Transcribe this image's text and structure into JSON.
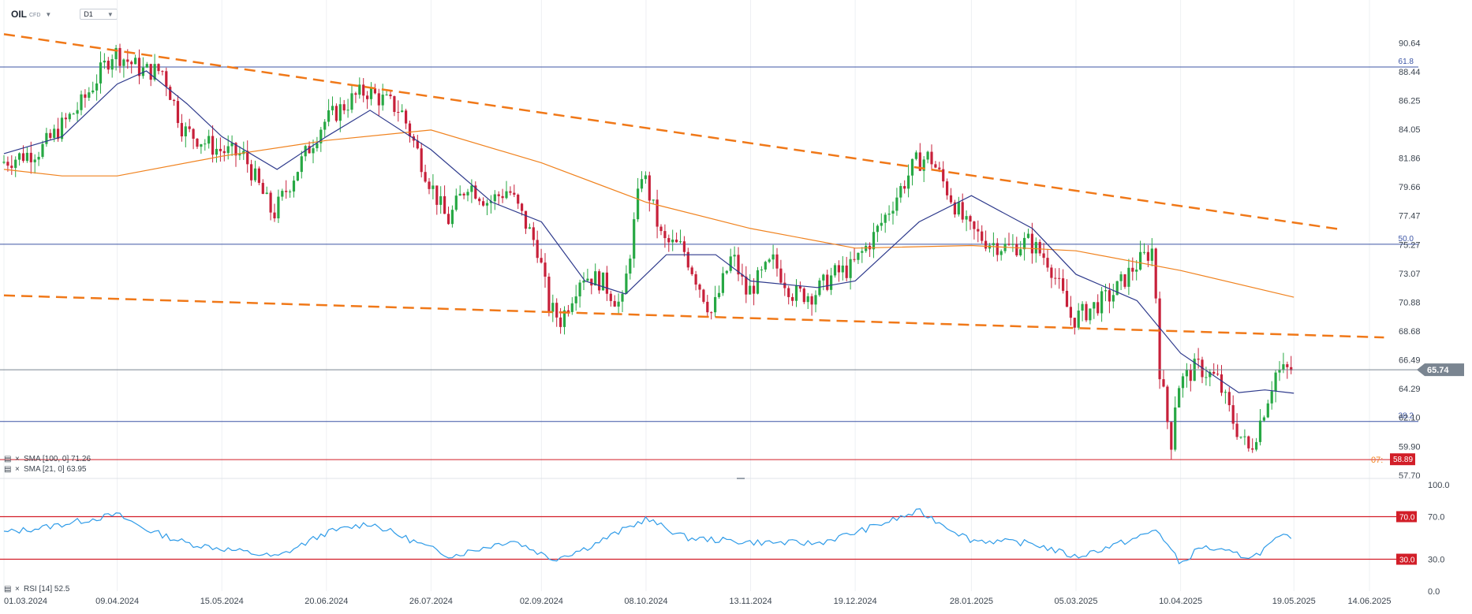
{
  "header": {
    "symbol": "OIL",
    "instrument_type": "CFD",
    "timeframe": "D1",
    "dropdown_icon": "caret-down-icon"
  },
  "colors": {
    "up_candle": "#27a844",
    "down_candle": "#c7203a",
    "sma21": "#2e3a8c",
    "sma100": "#f0821e",
    "trendline": "#f07818",
    "fib_line": "#3c55a5",
    "rsi_line": "#2e9be8",
    "rsi_level": "#d21e28",
    "current_price": "#7a8591",
    "support": "#d21e28"
  },
  "indicators": {
    "sma100_label": "SMA [100, 0] 71.26",
    "sma21_label": "SMA [21, 0] 63.95",
    "rsi_label": "RSI [14] 52.5",
    "rsi_level_70": "70.0",
    "rsi_level_30": "30.0",
    "rsi_axis_100": "100.0",
    "rsi_axis_70": "70.0",
    "rsi_axis_30": "30.0",
    "rsi_axis_0": "0.0"
  },
  "chart_data": {
    "type": "candlestick",
    "timeframe": "D1",
    "price_axis_ticks": [
      "90.64",
      "88.44",
      "86.25",
      "84.05",
      "81.86",
      "79.66",
      "77.47",
      "75.27",
      "73.07",
      "70.88",
      "68.68",
      "66.49",
      "64.29",
      "62.10",
      "59.90",
      "57.70"
    ],
    "price_range": [
      57.7,
      91.8
    ],
    "date_ticks": [
      "01.03.2024",
      "09.04.2024",
      "15.05.2024",
      "20.06.2024",
      "26.07.2024",
      "02.09.2024",
      "08.10.2024",
      "13.11.2024",
      "19.12.2024",
      "28.01.2025",
      "05.03.2025",
      "10.04.2025",
      "19.05.2025",
      "14.06.2025"
    ],
    "current_price": "65.74",
    "support_price": "58.89",
    "support_label_partial": "07:",
    "fibonacci_levels": [
      {
        "label": "61.8",
        "price": 88.8
      },
      {
        "label": "50.0",
        "price": 75.3
      },
      {
        "label": "38.2",
        "price": 61.8
      }
    ],
    "trendlines": [
      {
        "name": "upper",
        "from": {
          "date": "01.03.2024",
          "price": 91.3
        },
        "to": {
          "date": "05.06.2025",
          "price": 76.4
        }
      },
      {
        "name": "lower",
        "from": {
          "date": "01.03.2024",
          "price": 71.4
        },
        "to": {
          "date": "19.06.2025",
          "price": 68.2
        }
      }
    ],
    "price_path": [
      [
        "01.03.2024",
        81.5
      ],
      [
        "15.03.2024",
        82.5
      ],
      [
        "29.03.2024",
        86.0
      ],
      [
        "09.04.2024",
        90.0
      ],
      [
        "19.04.2024",
        88.5
      ],
      [
        "26.04.2024",
        88.5
      ],
      [
        "03.05.2024",
        84.0
      ],
      [
        "15.05.2024",
        82.5
      ],
      [
        "24.05.2024",
        82.0
      ],
      [
        "03.06.2024",
        77.5
      ],
      [
        "10.06.2024",
        80.5
      ],
      [
        "20.06.2024",
        84.5
      ],
      [
        "01.07.2024",
        86.5
      ],
      [
        "05.07.2024",
        87.0
      ],
      [
        "17.07.2024",
        85.5
      ],
      [
        "26.07.2024",
        80.5
      ],
      [
        "02.08.2024",
        77.0
      ],
      [
        "09.08.2024",
        80.0
      ],
      [
        "16.08.2024",
        78.5
      ],
      [
        "23.08.2024",
        79.5
      ],
      [
        "02.09.2024",
        75.0
      ],
      [
        "06.09.2024",
        70.5
      ],
      [
        "10.09.2024",
        69.5
      ],
      [
        "17.09.2024",
        73.0
      ],
      [
        "24.09.2024",
        72.5
      ],
      [
        "01.10.2024",
        70.5
      ],
      [
        "08.10.2024",
        81.0
      ],
      [
        "15.10.2024",
        75.5
      ],
      [
        "22.10.2024",
        75.0
      ],
      [
        "01.11.2024",
        70.0
      ],
      [
        "08.11.2024",
        74.5
      ],
      [
        "13.11.2024",
        71.5
      ],
      [
        "22.11.2024",
        74.0
      ],
      [
        "29.11.2024",
        71.5
      ],
      [
        "06.12.2024",
        71.5
      ],
      [
        "13.12.2024",
        73.0
      ],
      [
        "19.12.2024",
        73.5
      ],
      [
        "27.12.2024",
        76.0
      ],
      [
        "10.01.2025",
        81.5
      ],
      [
        "15.01.2025",
        82.0
      ],
      [
        "22.01.2025",
        79.0
      ],
      [
        "28.01.2025",
        76.5
      ],
      [
        "04.02.2025",
        75.5
      ],
      [
        "11.02.2025",
        75.0
      ],
      [
        "18.02.2025",
        75.5
      ],
      [
        "25.02.2025",
        74.0
      ],
      [
        "05.03.2025",
        69.5
      ],
      [
        "12.03.2025",
        70.5
      ],
      [
        "19.03.2025",
        71.5
      ],
      [
        "26.03.2025",
        73.5
      ],
      [
        "02.04.2025",
        75.0
      ],
      [
        "04.04.2025",
        66.0
      ],
      [
        "08.04.2025",
        60.0
      ],
      [
        "10.04.2025",
        64.5
      ],
      [
        "17.04.2025",
        66.0
      ],
      [
        "24.04.2025",
        65.0
      ],
      [
        "30.04.2025",
        61.5
      ],
      [
        "05.05.2025",
        59.5
      ],
      [
        "09.05.2025",
        62.0
      ],
      [
        "14.05.2025",
        65.5
      ],
      [
        "19.05.2025",
        65.74
      ]
    ],
    "sma21_path": [
      [
        "01.03.2024",
        82.2
      ],
      [
        "21.03.2024",
        83.5
      ],
      [
        "09.04.2024",
        87.5
      ],
      [
        "19.04.2024",
        88.5
      ],
      [
        "03.05.2024",
        86.0
      ],
      [
        "15.05.2024",
        83.5
      ],
      [
        "03.06.2024",
        81.0
      ],
      [
        "20.06.2024",
        83.5
      ],
      [
        "05.07.2024",
        85.5
      ],
      [
        "26.07.2024",
        82.5
      ],
      [
        "16.08.2024",
        78.5
      ],
      [
        "02.09.2024",
        77.0
      ],
      [
        "17.09.2024",
        72.5
      ],
      [
        "01.10.2024",
        71.5
      ],
      [
        "15.10.2024",
        74.5
      ],
      [
        "01.11.2024",
        74.5
      ],
      [
        "13.11.2024",
        72.5
      ],
      [
        "06.12.2024",
        72.0
      ],
      [
        "19.12.2024",
        72.5
      ],
      [
        "10.01.2025",
        77.0
      ],
      [
        "28.01.2025",
        79.0
      ],
      [
        "18.02.2025",
        76.5
      ],
      [
        "05.03.2025",
        73.0
      ],
      [
        "26.03.2025",
        71.0
      ],
      [
        "10.04.2025",
        67.0
      ],
      [
        "30.04.2025",
        64.0
      ],
      [
        "09.05.2025",
        64.2
      ],
      [
        "19.05.2025",
        63.95
      ]
    ],
    "sma100_path": [
      [
        "01.03.2024",
        81.0
      ],
      [
        "21.03.2024",
        80.5
      ],
      [
        "09.04.2024",
        80.5
      ],
      [
        "15.05.2024",
        82.0
      ],
      [
        "20.06.2024",
        83.2
      ],
      [
        "26.07.2024",
        84.0
      ],
      [
        "02.09.2024",
        81.5
      ],
      [
        "08.10.2024",
        78.5
      ],
      [
        "13.11.2024",
        76.5
      ],
      [
        "19.12.2024",
        75.0
      ],
      [
        "28.01.2025",
        75.2
      ],
      [
        "05.03.2025",
        74.8
      ],
      [
        "10.04.2025",
        73.3
      ],
      [
        "19.05.2025",
        71.26
      ]
    ],
    "rsi": {
      "period": 14,
      "current": 52.5,
      "range": [
        0,
        100
      ],
      "levels": [
        70,
        30
      ],
      "path": [
        [
          "01.03.2024",
          55
        ],
        [
          "15.03.2024",
          60
        ],
        [
          "09.04.2024",
          72
        ],
        [
          "19.04.2024",
          58
        ],
        [
          "03.05.2024",
          45
        ],
        [
          "15.05.2024",
          40
        ],
        [
          "03.06.2024",
          32
        ],
        [
          "20.06.2024",
          55
        ],
        [
          "05.07.2024",
          64
        ],
        [
          "26.07.2024",
          40
        ],
        [
          "02.08.2024",
          33
        ],
        [
          "23.08.2024",
          48
        ],
        [
          "06.09.2024",
          30
        ],
        [
          "17.09.2024",
          40
        ],
        [
          "08.10.2024",
          68
        ],
        [
          "22.10.2024",
          50
        ],
        [
          "13.11.2024",
          46
        ],
        [
          "06.12.2024",
          45
        ],
        [
          "19.12.2024",
          55
        ],
        [
          "10.01.2025",
          75
        ],
        [
          "28.01.2025",
          48
        ],
        [
          "18.02.2025",
          45
        ],
        [
          "05.03.2025",
          32
        ],
        [
          "26.03.2025",
          50
        ],
        [
          "02.04.2025",
          58
        ],
        [
          "10.04.2025",
          25
        ],
        [
          "17.04.2025",
          42
        ],
        [
          "30.04.2025",
          34
        ],
        [
          "05.05.2025",
          32
        ],
        [
          "14.05.2025",
          50
        ],
        [
          "19.05.2025",
          52.5
        ]
      ]
    }
  }
}
